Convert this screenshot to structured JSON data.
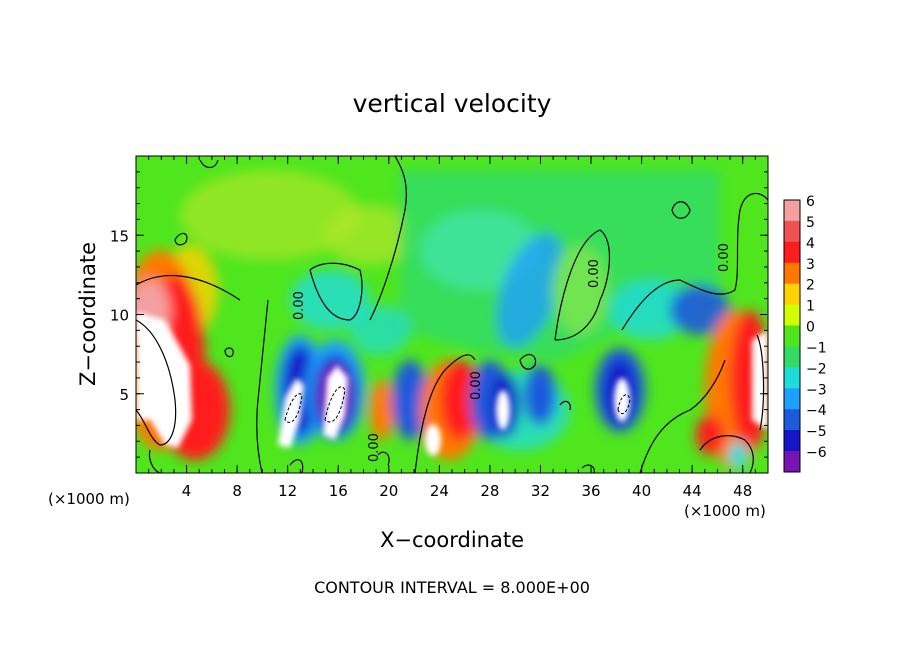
{
  "chart_data": {
    "type": "heatmap",
    "title": "vertical velocity",
    "xlabel": "X−coordinate",
    "ylabel": "Z−coordinate",
    "x_unit_label": "(×1000 m)",
    "z_unit_label": "(×1000 m)",
    "footer": "CONTOUR INTERVAL = 8.000E+00",
    "xlim": [
      0,
      50
    ],
    "ylim": [
      0,
      20
    ],
    "x_ticks": [
      4,
      8,
      12,
      16,
      20,
      24,
      28,
      32,
      36,
      40,
      44,
      48
    ],
    "x_tick_labels": [
      "4",
      "8",
      "12",
      "16",
      "20",
      "24",
      "28",
      "32",
      "36",
      "40",
      "44",
      "48"
    ],
    "y_ticks": [
      5,
      10,
      15
    ],
    "y_tick_labels": [
      "5",
      "10",
      "15"
    ],
    "colorbar": {
      "levels": [
        6,
        5,
        4,
        3,
        2,
        1,
        0,
        -1,
        -2,
        -3,
        -4,
        -5,
        -6
      ],
      "labels": [
        "6",
        "5",
        "4",
        "3",
        "2",
        "1",
        "0",
        "−1",
        "−2",
        "−3",
        "−4",
        "−5",
        "−6"
      ],
      "colors": [
        "#f4a0a0",
        "#f05050",
        "#ff1e1e",
        "#ff7800",
        "#ffd200",
        "#d2ff00",
        "#50e61e",
        "#32dc64",
        "#1edcdc",
        "#1ea0ff",
        "#1e5adc",
        "#1414c8",
        "#7814b4"
      ]
    },
    "contour_labels": [
      "0.00",
      "0.00",
      "0.00",
      "0.00",
      "0.00"
    ]
  }
}
